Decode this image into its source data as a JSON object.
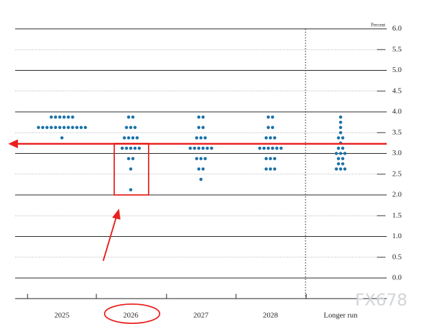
{
  "chart_data": {
    "type": "dot",
    "y_label": "Percent",
    "categories": [
      "2025",
      "2026",
      "2027",
      "2028",
      "Longer run"
    ],
    "values": [
      [
        3.875,
        3.875,
        3.875,
        3.875,
        3.875,
        3.875,
        3.625,
        3.625,
        3.625,
        3.625,
        3.625,
        3.625,
        3.625,
        3.625,
        3.625,
        3.625,
        3.625,
        3.625,
        3.375
      ],
      [
        3.875,
        3.875,
        3.625,
        3.625,
        3.625,
        3.375,
        3.375,
        3.375,
        3.375,
        3.125,
        3.125,
        3.125,
        3.125,
        3.125,
        2.875,
        2.875,
        2.625,
        2.125
      ],
      [
        3.875,
        3.875,
        3.625,
        3.625,
        3.375,
        3.375,
        3.375,
        3.125,
        3.125,
        3.125,
        3.125,
        3.125,
        3.125,
        2.875,
        2.875,
        2.875,
        2.625,
        2.625,
        2.375
      ],
      [
        3.875,
        3.875,
        3.625,
        3.625,
        3.375,
        3.375,
        3.375,
        3.125,
        3.125,
        3.125,
        3.125,
        3.125,
        3.125,
        2.875,
        2.875,
        2.875,
        2.625,
        2.625,
        2.625
      ],
      [
        3.875,
        3.75,
        3.625,
        3.5,
        3.375,
        3.375,
        3.25,
        3.125,
        3.125,
        3.0,
        3.0,
        3.0,
        2.875,
        2.875,
        2.75,
        2.75,
        2.625,
        2.625,
        2.625
      ]
    ],
    "color": "#1b72a8",
    "ylim": [
      0,
      6
    ],
    "yticks": [
      {
        "value": 0,
        "label": "0.0"
      },
      {
        "value": 0.5,
        "label": "0.5"
      },
      {
        "value": 1,
        "label": "1.0"
      },
      {
        "value": 1.5,
        "label": "1.5"
      },
      {
        "value": 2,
        "label": "2.0"
      },
      {
        "value": 2.5,
        "label": "2.5"
      },
      {
        "value": 3,
        "label": "3.0"
      },
      {
        "value": 3.5,
        "label": "3.5"
      },
      {
        "value": 4,
        "label": "4.0"
      },
      {
        "value": 4.5,
        "label": "4.5"
      },
      {
        "value": 5,
        "label": "5.0"
      },
      {
        "value": 5.5,
        "label": "5.5"
      },
      {
        "value": 6,
        "label": "6.0"
      }
    ],
    "grid": true
  },
  "watermark": "FX678"
}
